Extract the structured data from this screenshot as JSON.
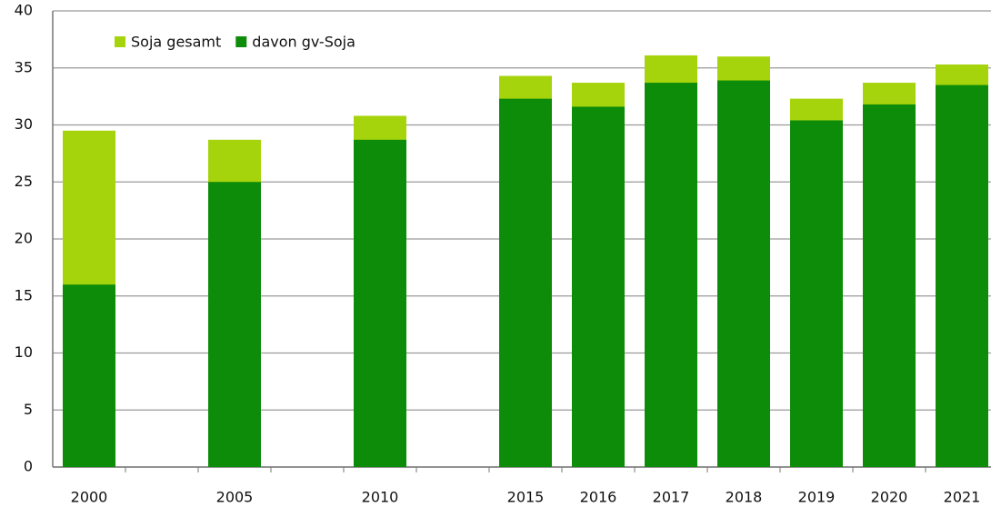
{
  "chart_data": {
    "type": "bar",
    "overlap": true,
    "categories": [
      "2000",
      null,
      "2005",
      null,
      "2010",
      null,
      "2015",
      "2016",
      "2017",
      "2018",
      "2019",
      "2020",
      "2021"
    ],
    "series": [
      {
        "name": "Soja gesamt",
        "color": "#a6d40c",
        "values": [
          29.5,
          null,
          28.7,
          null,
          30.8,
          null,
          34.3,
          33.7,
          36.1,
          36.0,
          32.3,
          33.7,
          35.3
        ]
      },
      {
        "name": "davon gv-Soja",
        "color": "#0d8c0a",
        "values": [
          16.0,
          null,
          25.0,
          null,
          28.7,
          null,
          32.3,
          31.6,
          33.7,
          33.9,
          30.4,
          31.8,
          33.5
        ]
      }
    ],
    "ylim": [
      0,
      40
    ],
    "yticks": [
      0,
      5,
      10,
      15,
      20,
      25,
      30,
      35,
      40
    ],
    "grid": true,
    "legend": "top-left"
  }
}
